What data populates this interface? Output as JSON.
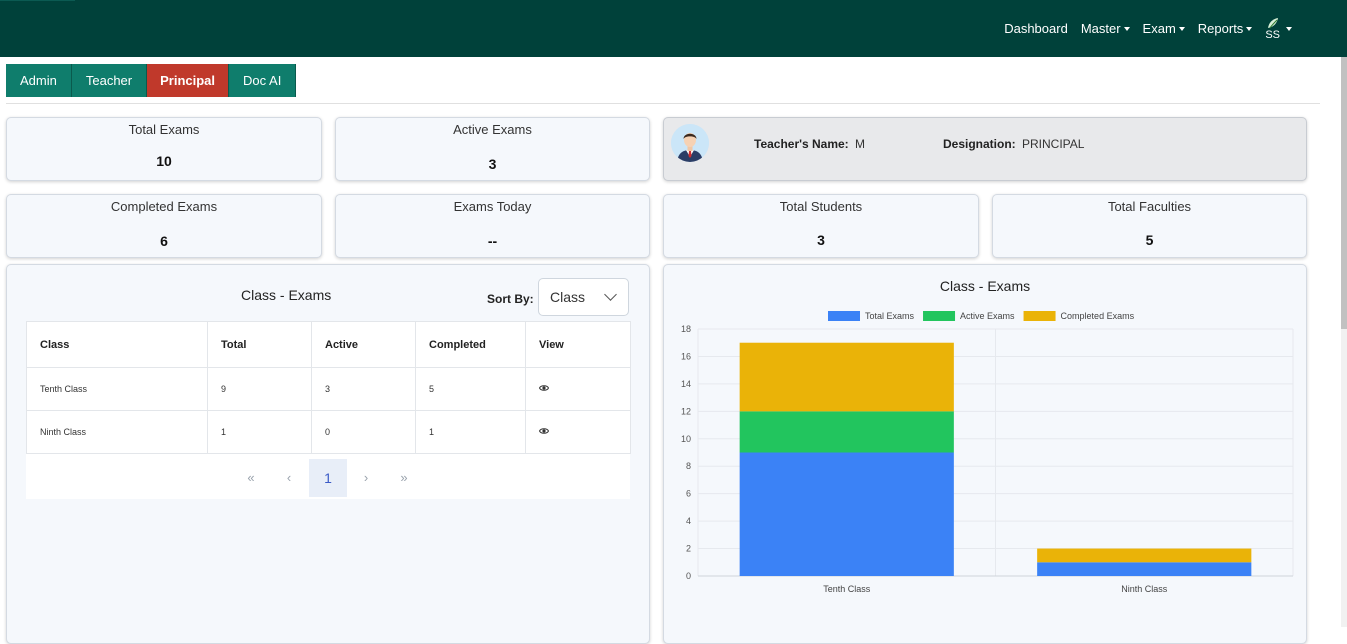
{
  "nav": {
    "dashboard": "Dashboard",
    "master": "Master",
    "exam": "Exam",
    "reports": "Reports",
    "user_initials": "SS"
  },
  "tabs": [
    "Admin",
    "Teacher",
    "Principal",
    "Doc AI"
  ],
  "stats": {
    "total_exams": {
      "label": "Total Exams",
      "value": "10"
    },
    "active_exams": {
      "label": "Active Exams",
      "value": "3"
    },
    "completed_exams": {
      "label": "Completed Exams",
      "value": "6"
    },
    "exams_today": {
      "label": "Exams Today",
      "value": "--"
    },
    "total_students": {
      "label": "Total Students",
      "value": "3"
    },
    "total_faculties": {
      "label": "Total Faculties",
      "value": "5"
    }
  },
  "profile": {
    "name_label": "Teacher's Name:",
    "name_value": "M",
    "designation_label": "Designation:",
    "designation_value": "PRINCIPAL"
  },
  "table_panel": {
    "title": "Class - Exams",
    "sort_label": "Sort By:",
    "sort_value": "Class",
    "headers": [
      "Class",
      "Total",
      "Active",
      "Completed",
      "View"
    ],
    "rows": [
      {
        "class": "Tenth Class",
        "total": "9",
        "active": "3",
        "completed": "5"
      },
      {
        "class": "Ninth Class",
        "total": "1",
        "active": "0",
        "completed": "1"
      }
    ],
    "pagination": {
      "first": "«",
      "prev": "‹",
      "current": "1",
      "next": "›",
      "last": "»"
    }
  },
  "colors": {
    "header_bg": "#00413a",
    "tab_bg": "#0f7d6c",
    "tab_active_bg": "#c0392b",
    "total": "#3b82f6",
    "active": "#22c55e",
    "completed": "#eab308"
  },
  "chart_data": {
    "type": "bar",
    "stacked": true,
    "title": "Class - Exams",
    "categories": [
      "Tenth Class",
      "Ninth Class"
    ],
    "series": [
      {
        "name": "Total Exams",
        "values": [
          9,
          1
        ],
        "color": "#3b82f6"
      },
      {
        "name": "Active Exams",
        "values": [
          3,
          0
        ],
        "color": "#22c55e"
      },
      {
        "name": "Completed Exams",
        "values": [
          5,
          1
        ],
        "color": "#eab308"
      }
    ],
    "ylim": [
      0,
      18
    ],
    "yticks": [
      0,
      2,
      4,
      6,
      8,
      10,
      12,
      14,
      16,
      18
    ],
    "legend": "top",
    "grid": true
  }
}
